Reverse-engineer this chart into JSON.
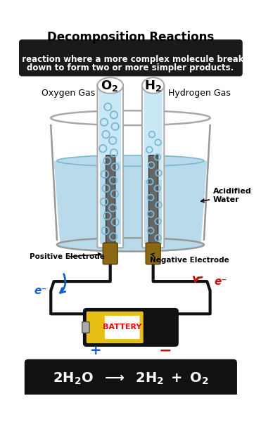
{
  "title": "Decomposition Reactions",
  "subtitle_line1": "A reaction where a more complex molecule breaks",
  "subtitle_line2": "down to form two or more simpler products.",
  "oxygen_gas_label": "Oxygen Gas",
  "hydrogen_gas_label": "Hydrogen Gas",
  "acidified_water_label": "Acidified\nWater",
  "positive_electrode_label": "Positive Electrode",
  "negative_electrode_label": "Negative Electrode",
  "battery_label": "BATTERY",
  "plus_label": "+",
  "minus_label": "−",
  "electron_label": "e⁻",
  "bg_color": "#ffffff",
  "subtitle_bg": "#1a1a1a",
  "subtitle_fg": "#ffffff",
  "water_color": "#b8daea",
  "tube_fill_color": "#c8e8f5",
  "bubble_edge": "#7ab8d4",
  "electrode_color": "#666666",
  "connector_color": "#8b6914",
  "battery_yellow": "#e8c015",
  "battery_black": "#111111",
  "battery_white_band": "#eeeeee",
  "equation_bg": "#111111",
  "equation_fg": "#ffffff",
  "wire_color": "#111111",
  "arrow_blue": "#1060cc",
  "arrow_red": "#cc1010",
  "beaker_edge": "#999999",
  "tube_edge": "#aaaaaa"
}
